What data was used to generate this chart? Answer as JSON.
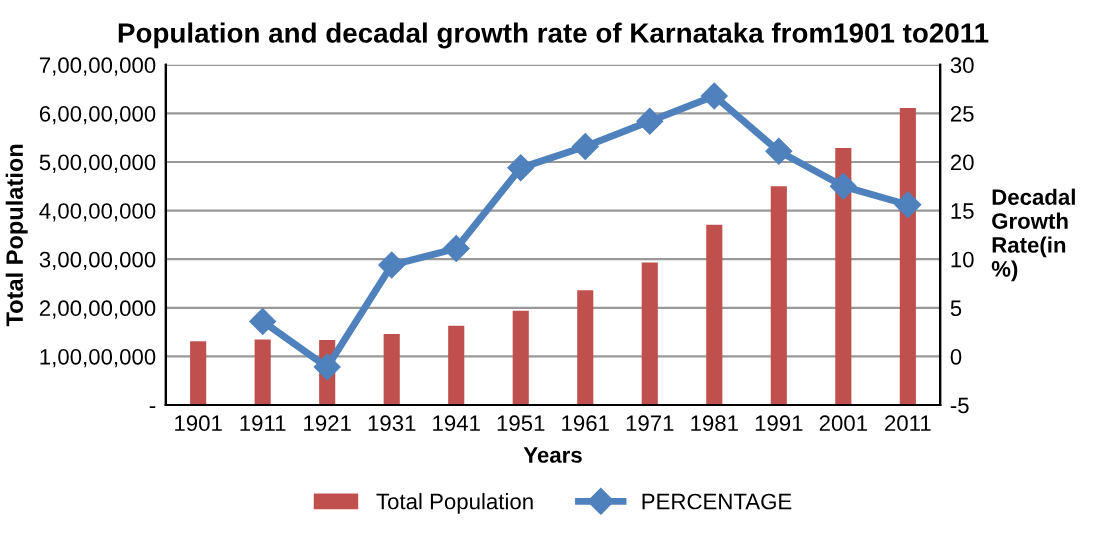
{
  "chart_data": {
    "type": "bar",
    "title": "Population and decadal growth rate of Karnataka from1901 to2011",
    "xlabel": "Years",
    "ylabel": "Total Population",
    "y2label": "Decadal\nGrowth\nRate(in\n%)",
    "categories": [
      "1901",
      "1911",
      "1921",
      "1931",
      "1941",
      "1951",
      "1961",
      "1971",
      "1981",
      "1991",
      "2001",
      "2011"
    ],
    "series": [
      {
        "name": "Total Population",
        "color": "#c0504d",
        "values": [
          13100000,
          13500000,
          13400000,
          14600000,
          16300000,
          19400000,
          23600000,
          29300000,
          37100000,
          45000000,
          52900000,
          61100000
        ]
      },
      {
        "name": "PERCENTAGE",
        "type": "line",
        "axis": "y2",
        "color": "#4f81bd",
        "marker": "diamond",
        "values": [
          null,
          3.6,
          -1.1,
          9.4,
          11.1,
          19.4,
          21.6,
          24.2,
          26.8,
          21.1,
          17.5,
          15.6
        ]
      }
    ],
    "ylim": [
      0,
      70000000
    ],
    "yticks": [
      {
        "value": 0,
        "label": "-"
      },
      {
        "value": 10000000,
        "label": "1,00,00,000"
      },
      {
        "value": 20000000,
        "label": "2,00,00,000"
      },
      {
        "value": 30000000,
        "label": "3,00,00,000"
      },
      {
        "value": 40000000,
        "label": "4,00,00,000"
      },
      {
        "value": 50000000,
        "label": "5,00,00,000"
      },
      {
        "value": 60000000,
        "label": "6,00,00,000"
      },
      {
        "value": 70000000,
        "label": "7,00,00,000"
      }
    ],
    "y2lim": [
      -5,
      30
    ],
    "y2ticks": [
      -5,
      0,
      5,
      10,
      15,
      20,
      25,
      30
    ],
    "grid": "y",
    "legend": "bottom"
  }
}
